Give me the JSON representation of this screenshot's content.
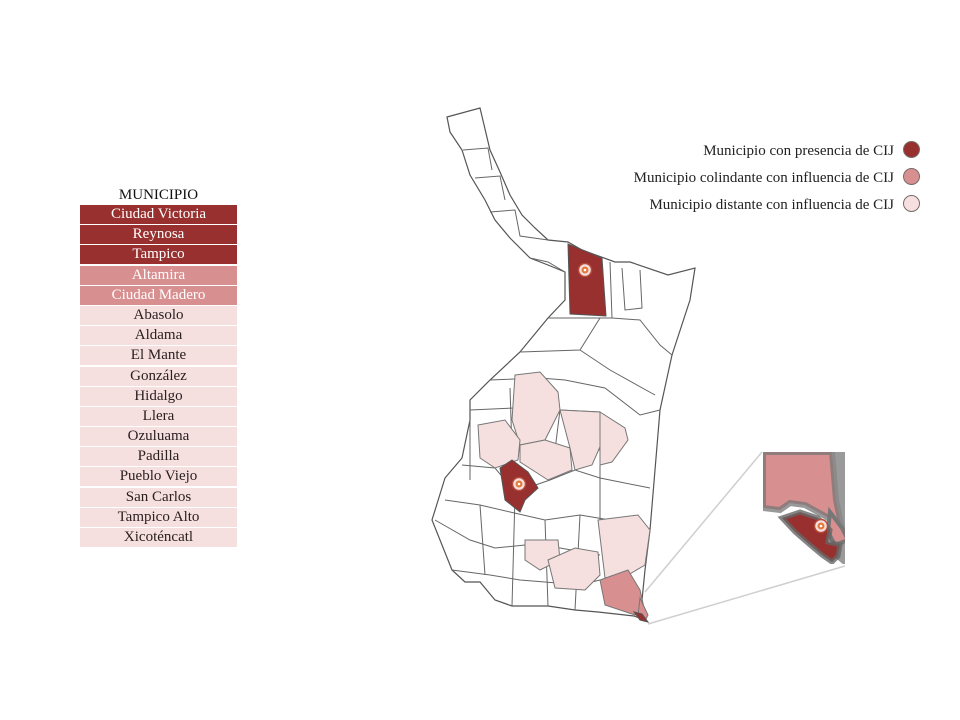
{
  "table": {
    "header": "MUNICIPIO",
    "rows": [
      {
        "name": "Ciudad Victoria",
        "category": "presence"
      },
      {
        "name": "Reynosa",
        "category": "presence"
      },
      {
        "name": "Tampico",
        "category": "presence"
      },
      {
        "name": "Altamira",
        "category": "colindante"
      },
      {
        "name": "Ciudad Madero",
        "category": "colindante"
      },
      {
        "name": "Abasolo",
        "category": "distante"
      },
      {
        "name": "Aldama",
        "category": "distante"
      },
      {
        "name": "El Mante",
        "category": "distante"
      },
      {
        "name": "González",
        "category": "distante"
      },
      {
        "name": "Hidalgo",
        "category": "distante"
      },
      {
        "name": "Llera",
        "category": "distante"
      },
      {
        "name": "Ozuluama",
        "category": "distante"
      },
      {
        "name": "Padilla",
        "category": "distante"
      },
      {
        "name": "Pueblo Viejo",
        "category": "distante"
      },
      {
        "name": "San Carlos",
        "category": "distante"
      },
      {
        "name": "Tampico Alto",
        "category": "distante"
      },
      {
        "name": "Xicoténcatl",
        "category": "distante"
      }
    ]
  },
  "legend": [
    {
      "label": "Municipio con presencia de CIJ",
      "category": "presence"
    },
    {
      "label": "Municipio colindante con influencia de CIJ",
      "category": "colindante"
    },
    {
      "label": "Municipio distante con influencia de CIJ",
      "category": "distante"
    }
  ],
  "colors": {
    "presence": "#97302f",
    "colindante": "#d88f90",
    "distante": "#f5e0df",
    "border": "#555555",
    "marker": "#e07b3c"
  }
}
